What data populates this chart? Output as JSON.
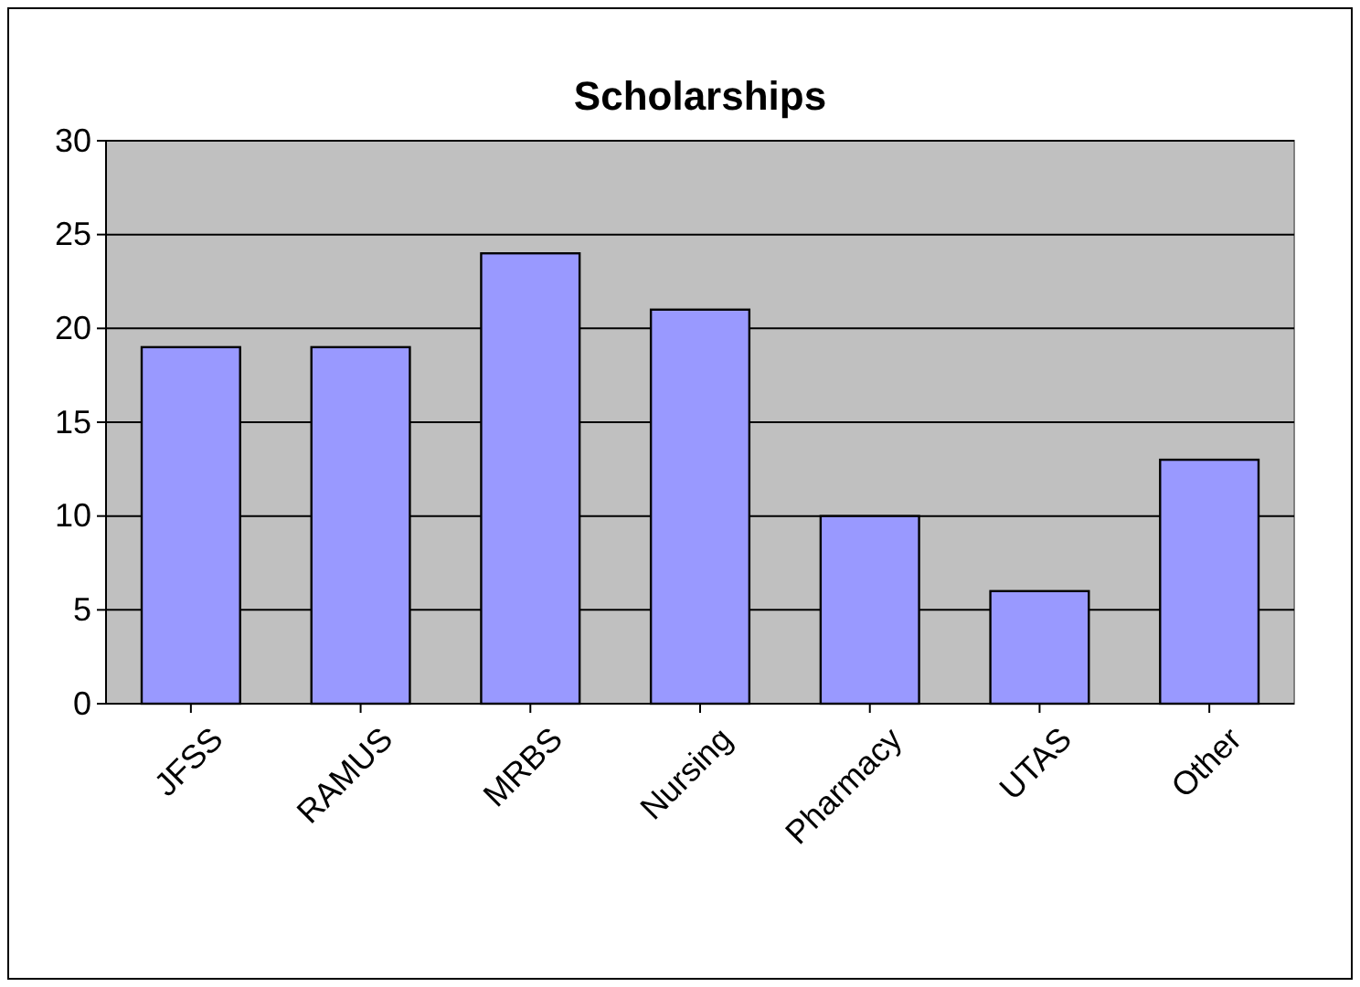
{
  "chart_data": {
    "type": "bar",
    "title": "Scholarships",
    "categories": [
      "JFSS",
      "RAMUS",
      "MRBS",
      "Nursing",
      "Pharmacy",
      "UTAS",
      "Other"
    ],
    "values": [
      19,
      19,
      24,
      21,
      10,
      6,
      13
    ],
    "color": "#9999ff",
    "ylim": [
      0,
      30
    ],
    "yticks": [
      0,
      5,
      10,
      15,
      20,
      25,
      30
    ],
    "grid": "y",
    "legend": false
  }
}
